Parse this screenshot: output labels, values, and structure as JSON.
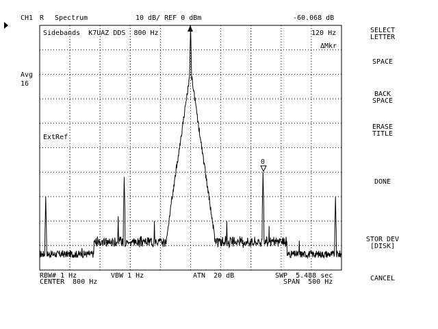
{
  "header": {
    "channel": "CH1",
    "channel_mode": "R",
    "measurement": "Spectrum",
    "scale": "10 dB/ REF 0 dBm",
    "marker_readout": "-60.068 dB"
  },
  "left_panel": {
    "avg_label": "Avg",
    "avg_count": "16"
  },
  "display": {
    "title": "Sidebands  K7UAZ DDS  800 Hz",
    "marker_freq": "120 Hz",
    "marker_mode": "ΔMkr",
    "ext_ref": "ExtRef",
    "delta_marker_label": "0"
  },
  "footer": {
    "rbw": "RBW# 1 Hz",
    "vbw": "VBW 1 Hz",
    "atn": "ATN  20 dB",
    "swp": "SWP  5.488 sec",
    "center": "CENTER  800 Hz",
    "span": "SPAN  500 Hz"
  },
  "softkeys": [
    {
      "line1": "SELECT",
      "line2": "LETTER"
    },
    {
      "line1": "SPACE",
      "line2": ""
    },
    {
      "line1": "BACK",
      "line2": "SPACE"
    },
    {
      "line1": "ERASE",
      "line2": "TITLE"
    },
    {
      "line1": "DONE",
      "line2": ""
    },
    {
      "line1": "STOR DEV",
      "line2": "[DISK]"
    },
    {
      "line1": "CANCEL",
      "line2": ""
    }
  ],
  "chart_data": {
    "type": "line",
    "x_unit": "Hz",
    "y_unit": "dBm",
    "xlim": [
      550,
      1050
    ],
    "ylim": [
      -100,
      0
    ],
    "grid": true,
    "center_hz": 800,
    "span_hz": 500,
    "peaks": [
      {
        "freq_hz": 560,
        "level_dbm": -70
      },
      {
        "freq_hz": 620,
        "level_dbm": -91
      },
      {
        "freq_hz": 640,
        "level_dbm": -88
      },
      {
        "freq_hz": 680,
        "level_dbm": -78
      },
      {
        "freq_hz": 690,
        "level_dbm": -62
      },
      {
        "freq_hz": 740,
        "level_dbm": -80
      },
      {
        "freq_hz": 800,
        "level_dbm": 0
      },
      {
        "freq_hz": 860,
        "level_dbm": -80
      },
      {
        "freq_hz": 920,
        "level_dbm": -60
      },
      {
        "freq_hz": 930,
        "level_dbm": -82
      },
      {
        "freq_hz": 980,
        "level_dbm": -88
      },
      {
        "freq_hz": 1040,
        "level_dbm": -70
      }
    ],
    "noise_floor_dbm": -95,
    "marker": {
      "freq_hz": 920,
      "level_dbm": -60
    }
  }
}
